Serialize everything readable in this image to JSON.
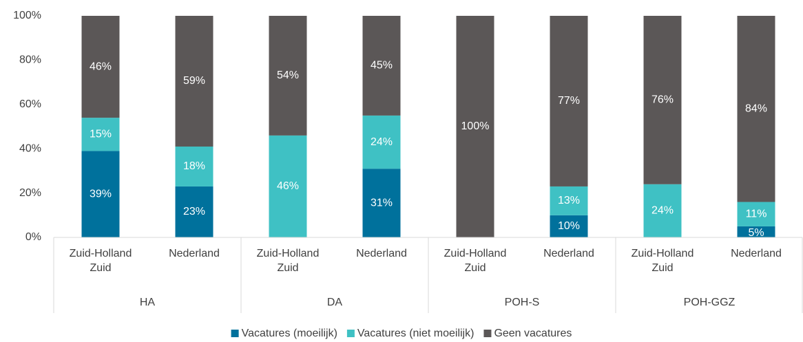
{
  "chart_data": {
    "type": "stacked_bar",
    "categories": [
      "Zuid-Holland Zuid",
      "Nederland",
      "Zuid-Holland Zuid",
      "Nederland",
      "Zuid-Holland Zuid",
      "Nederland",
      "Zuid-Holland Zuid",
      "Nederland"
    ],
    "groups": [
      "HA",
      "DA",
      "POH-S",
      "POH-GGZ"
    ],
    "series": [
      {
        "name": "Vacatures (moeilijk)",
        "color": "#00719c",
        "values": [
          39,
          23,
          0,
          31,
          0,
          10,
          0,
          5
        ],
        "value_labels": [
          "39%",
          "23%",
          null,
          "31%",
          null,
          "10%",
          null,
          "5%"
        ]
      },
      {
        "name": "Vacatures (niet moeilijk)",
        "color": "#3fc1c4",
        "values": [
          15,
          18,
          46,
          24,
          0,
          13,
          24,
          11
        ],
        "value_labels": [
          "15%",
          "18%",
          "46%",
          "24%",
          null,
          "13%",
          "24%",
          "11%"
        ]
      },
      {
        "name": "Geen vacatures",
        "color": "#5b5757",
        "values": [
          46,
          59,
          54,
          45,
          100,
          77,
          76,
          84
        ],
        "value_labels": [
          "46%",
          "59%",
          "54%",
          "45%",
          "100%",
          "77%",
          "76%",
          "84%"
        ]
      }
    ],
    "ylim": [
      0,
      100
    ],
    "yticks": [
      {
        "value": 0,
        "label": "0%"
      },
      {
        "value": 20,
        "label": "20%"
      },
      {
        "value": 40,
        "label": "40%"
      },
      {
        "value": 60,
        "label": "60%"
      },
      {
        "value": 80,
        "label": "80%"
      },
      {
        "value": 100,
        "label": "100%"
      }
    ],
    "legend": "bottom"
  }
}
